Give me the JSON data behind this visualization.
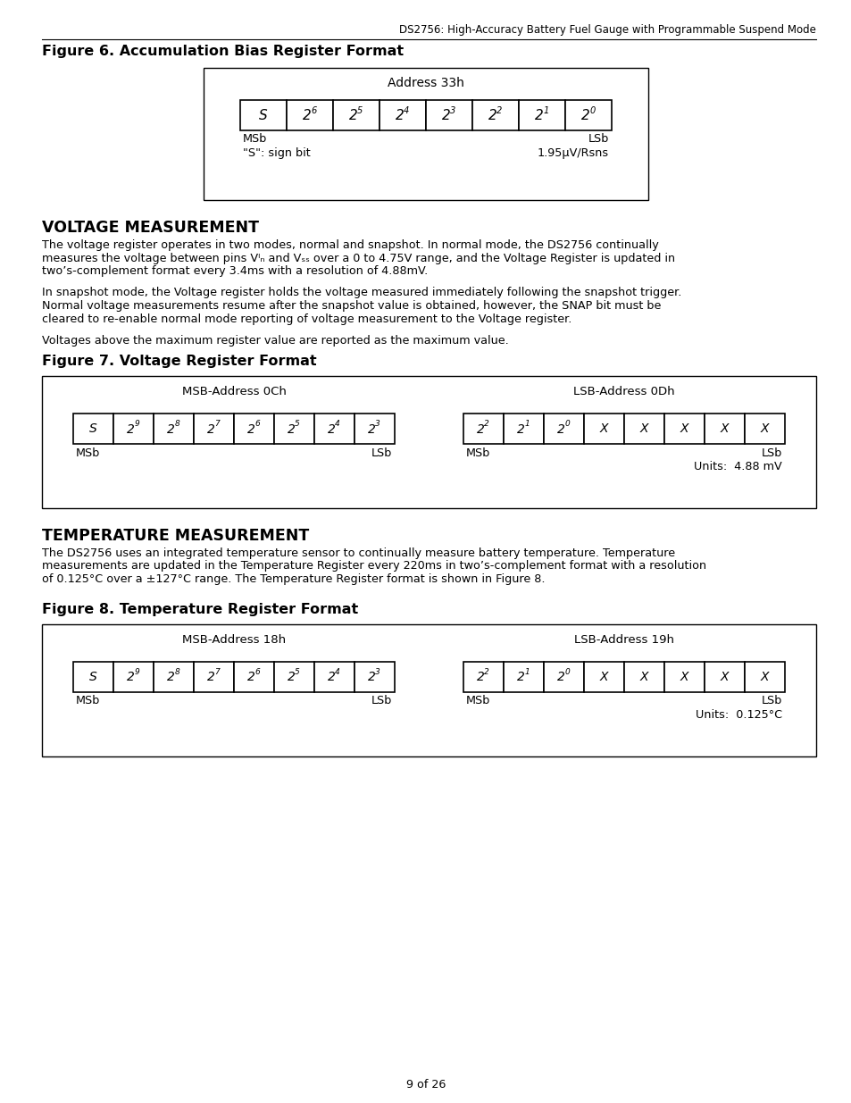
{
  "header_text": "DS2756: High-Accuracy Battery Fuel Gauge with Programmable Suspend Mode",
  "fig6_title": "Figure 6. Accumulation Bias Register Format",
  "fig6_address": "Address 33h",
  "fig6_cells_base": [
    "S",
    "2",
    "2",
    "2",
    "2",
    "2",
    "2",
    "2"
  ],
  "fig6_cells_exp": [
    "",
    "6",
    "5",
    "4",
    "3",
    "2",
    "1",
    "0"
  ],
  "fig6_msb": "MSb",
  "fig6_lsb": "LSb",
  "fig6_note1": "\"S\": sign bit",
  "fig6_note2": "1.95μV/Rsns",
  "voltage_heading": "VOLTAGE MEASUREMENT",
  "voltage_para1_lines": [
    "The voltage register operates in two modes, normal and snapshot. In normal mode, the DS2756 continually",
    "measures the voltage between pins Vᴵₙ and Vₛₛ over a 0 to 4.75V range, and the Voltage Register is updated in",
    "two’s-complement format every 3.4ms with a resolution of 4.88mV."
  ],
  "voltage_para2_lines": [
    "In snapshot mode, the Voltage register holds the voltage measured immediately following the snapshot trigger.",
    "Normal voltage measurements resume after the snapshot value is obtained, however, the SNAP bit must be",
    "cleared to re-enable normal mode reporting of voltage measurement to the Voltage register."
  ],
  "voltage_para3": "Voltages above the maximum register value are reported as the maximum value.",
  "fig7_title": "Figure 7. Voltage Register Format",
  "fig7_msb_addr": "MSB-Address 0Ch",
  "fig7_lsb_addr": "LSB-Address 0Dh",
  "fig7_msb_cells_base": [
    "S",
    "2",
    "2",
    "2",
    "2",
    "2",
    "2",
    "2"
  ],
  "fig7_msb_cells_exp": [
    "",
    "9",
    "8",
    "7",
    "6",
    "5",
    "4",
    "3"
  ],
  "fig7_lsb_cells_base": [
    "2",
    "2",
    "2",
    "X",
    "X",
    "X",
    "X",
    "X"
  ],
  "fig7_lsb_cells_exp": [
    "2",
    "1",
    "0",
    "",
    "",
    "",
    "",
    ""
  ],
  "fig7_msb": "MSb",
  "fig7_lsb1": "LSb",
  "fig7_msb2": "MSb",
  "fig7_lsb2": "LSb",
  "fig7_units": "Units:  4.88 mV",
  "temp_heading": "TEMPERATURE MEASUREMENT",
  "temp_para1_lines": [
    "The DS2756 uses an integrated temperature sensor to continually measure battery temperature. Temperature",
    "measurements are updated in the Temperature Register every 220ms in two’s-complement format with a resolution",
    "of 0.125°C over a ±127°C range. The Temperature Register format is shown in Figure 8."
  ],
  "fig8_title": "Figure 8. Temperature Register Format",
  "fig8_msb_addr": "MSB-Address 18h",
  "fig8_lsb_addr": "LSB-Address 19h",
  "fig8_msb_cells_base": [
    "S",
    "2",
    "2",
    "2",
    "2",
    "2",
    "2",
    "2"
  ],
  "fig8_msb_cells_exp": [
    "",
    "9",
    "8",
    "7",
    "6",
    "5",
    "4",
    "3"
  ],
  "fig8_lsb_cells_base": [
    "2",
    "2",
    "2",
    "X",
    "X",
    "X",
    "X",
    "X"
  ],
  "fig8_lsb_cells_exp": [
    "2",
    "1",
    "0",
    "",
    "",
    "",
    "",
    ""
  ],
  "fig8_msb": "MSb",
  "fig8_lsb1": "LSb",
  "fig8_msb2": "MSb",
  "fig8_lsb2": "LSb",
  "fig8_units": "Units:  0.125°C",
  "footer": "9 of 26",
  "bg_color": "#ffffff"
}
